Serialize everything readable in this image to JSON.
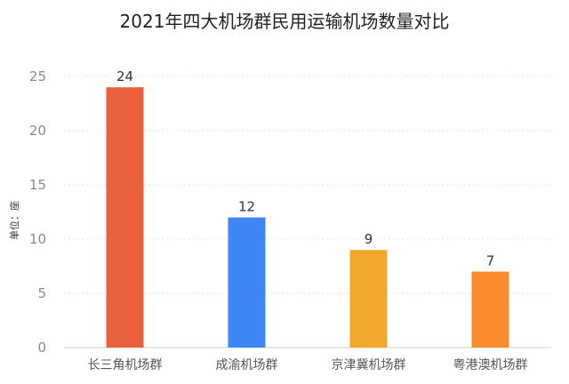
{
  "chart_data": {
    "type": "bar",
    "title": "2021年四大机场群民用运输机场数量对比",
    "ylabel": "单位：座",
    "xlabel": "",
    "ylim": [
      0,
      25
    ],
    "yticks": [
      0,
      5,
      10,
      15,
      20,
      25
    ],
    "grid": true,
    "categories": [
      "长三角机场群",
      "成渝机场群",
      "京津冀机场群",
      "粤港澳机场群"
    ],
    "values": [
      24,
      12,
      9,
      7
    ],
    "colors": [
      "#E8603C",
      "#3E86F5",
      "#F2A92B",
      "#FA8C2E"
    ]
  }
}
